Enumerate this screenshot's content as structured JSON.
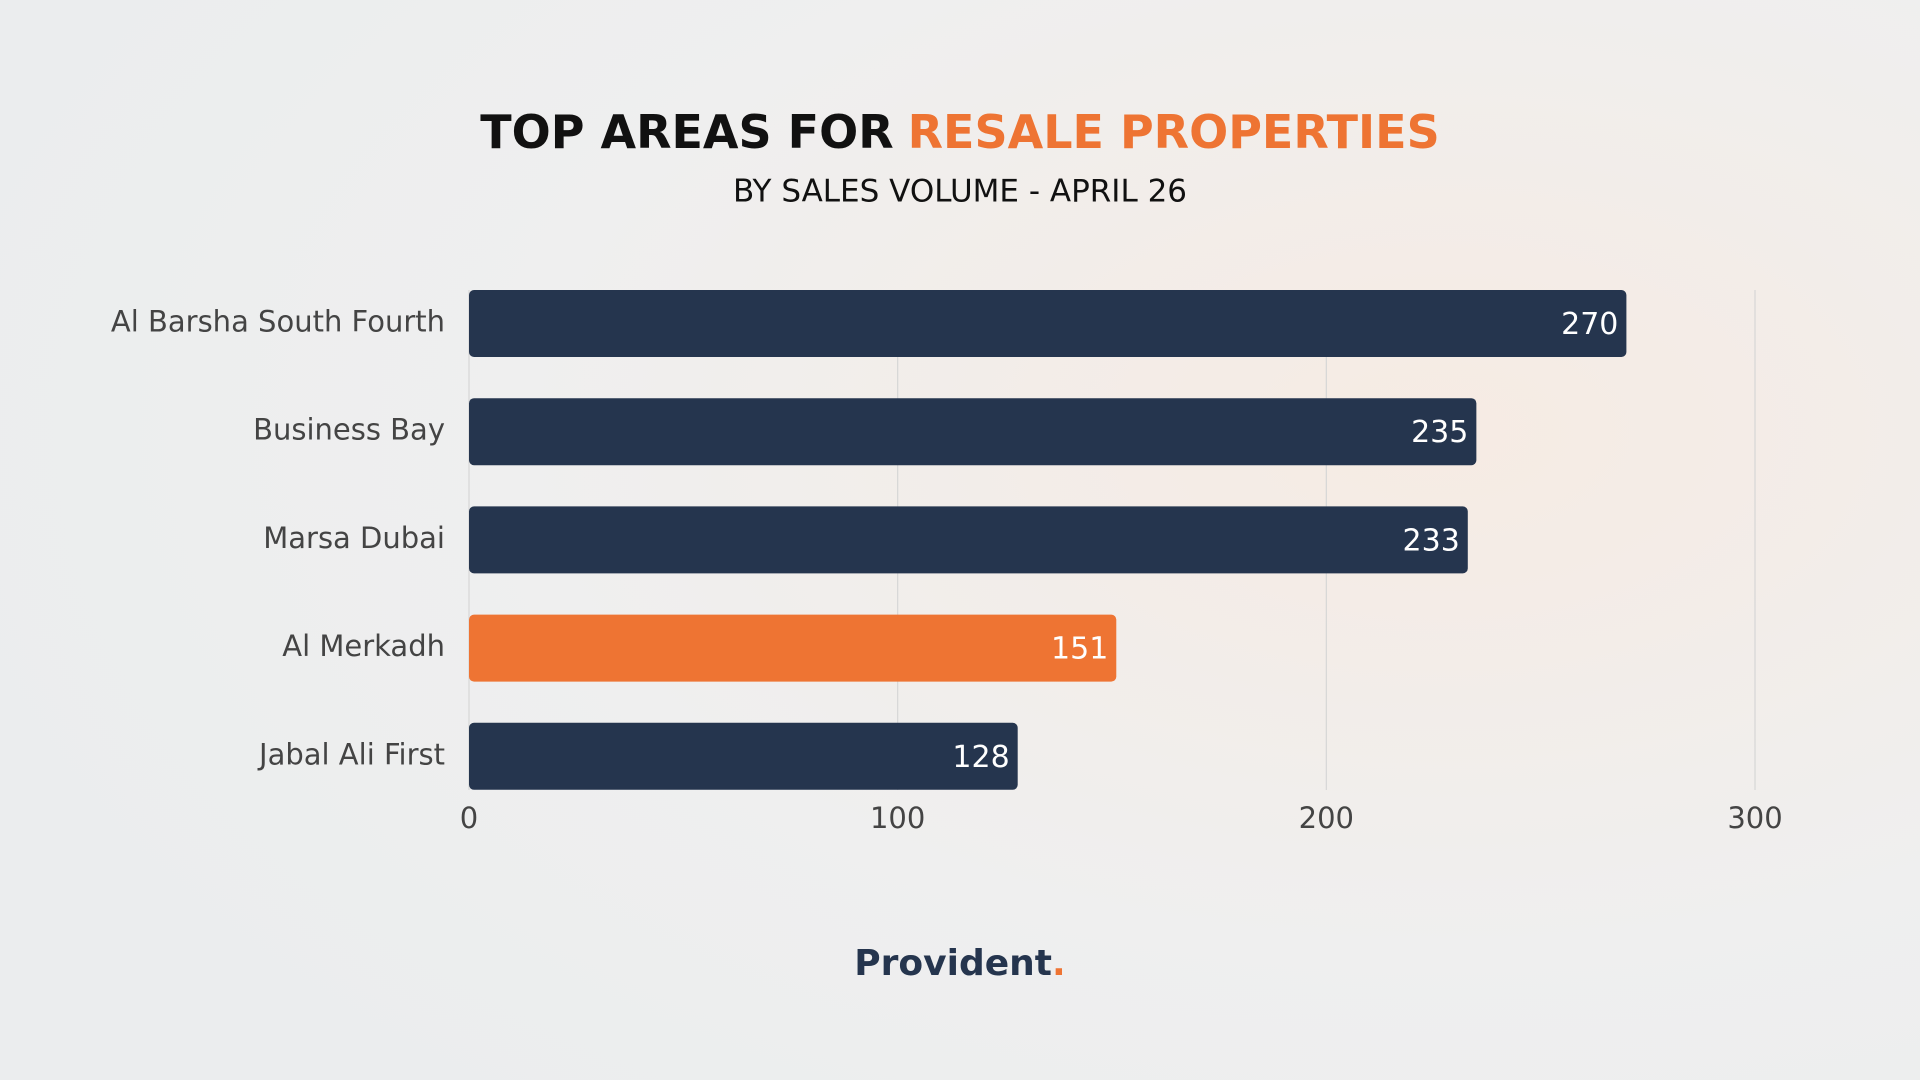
{
  "chart_data": {
    "type": "barh",
    "title": [
      "TOP AREAS FOR",
      "RESALE PROPERTIES"
    ],
    "subtitle": "BY SALES VOLUME - APRIL 26",
    "categories": [
      "Al Barsha South Fourth",
      "Business Bay",
      "Marsa Dubai",
      "Al Merkadh",
      "Jabal Ali First"
    ],
    "values": [
      270,
      235,
      233,
      151,
      128
    ],
    "colors": [
      "#25354e",
      "#25354e",
      "#25354e",
      "#ee7433",
      "#25354e"
    ],
    "xlim": [
      0,
      300
    ],
    "xticks": [
      0,
      100,
      200,
      300
    ],
    "grid": true
  },
  "brand": {
    "name": "Provident",
    "mark": "."
  }
}
